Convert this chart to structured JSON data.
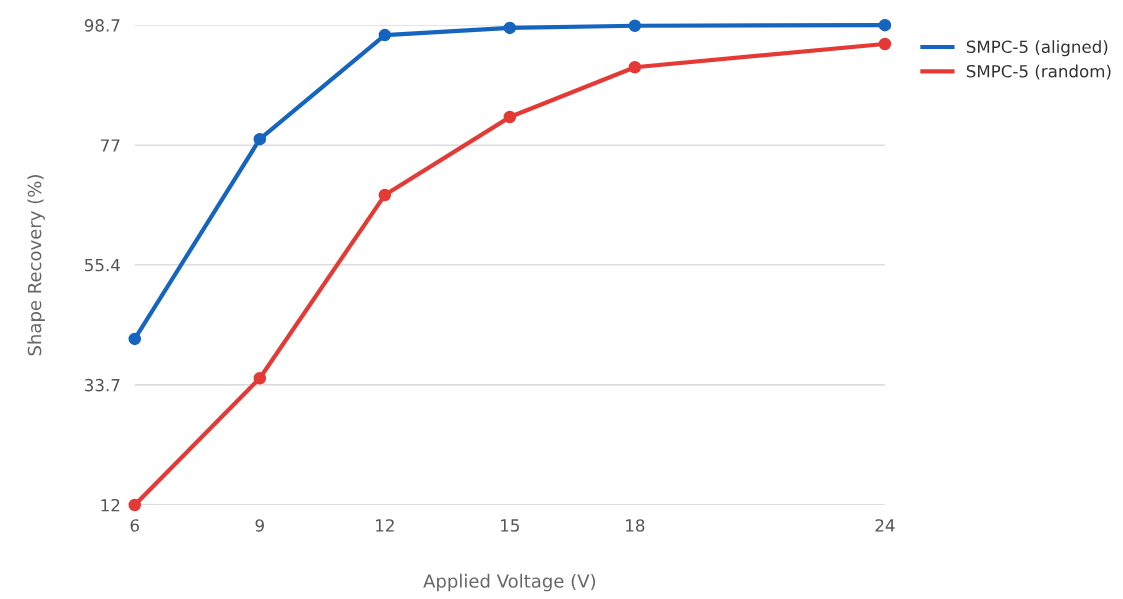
{
  "chart_data": {
    "type": "line",
    "xlabel": "Applied Voltage (V)",
    "ylabel": "Shape Recovery (%)",
    "x": [
      6,
      9,
      12,
      15,
      18,
      24
    ],
    "series": [
      {
        "name": "SMPC-5 (aligned)",
        "color": "#1565c0",
        "values": [
          42.0,
          78.1,
          96.9,
          98.2,
          98.6,
          98.7
        ]
      },
      {
        "name": "SMPC-5 (random)",
        "color": "#e53935",
        "values": [
          12.0,
          34.9,
          68.0,
          82.1,
          91.1,
          95.3
        ]
      }
    ],
    "xlim": [
      6,
      24
    ],
    "xticks": [
      6,
      9,
      12,
      15,
      18,
      24
    ],
    "ylim": [
      12,
      98.7
    ],
    "yticks": [
      12,
      33.7,
      55.4,
      77,
      98.7
    ],
    "grid": "y",
    "legend": "top right",
    "marker": "circle",
    "line_style": "solid"
  }
}
